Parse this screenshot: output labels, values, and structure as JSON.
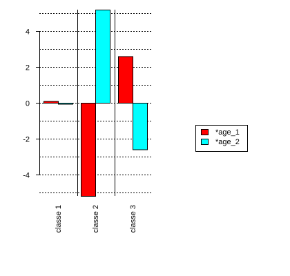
{
  "chart_data": {
    "type": "bar",
    "categories": [
      "classe 1",
      "classe 2",
      "classe 3"
    ],
    "series": [
      {
        "name": "*age_1",
        "color": "#ff0000",
        "values": [
          0.1,
          -5.2,
          2.6
        ]
      },
      {
        "name": "*age_2",
        "color": "#00ffff",
        "values": [
          -0.05,
          5.2,
          -2.6
        ]
      }
    ],
    "ylim": [
      -5.2,
      5.2
    ],
    "yticks": [
      -4,
      -2,
      0,
      2,
      4
    ],
    "ygrid": [
      -5,
      -4,
      -3,
      -2,
      -1,
      0,
      1,
      2,
      3,
      4,
      5
    ],
    "grid": true,
    "grid_style": "dotted",
    "legend_position": "right",
    "category_label_orientation": "vertical"
  }
}
